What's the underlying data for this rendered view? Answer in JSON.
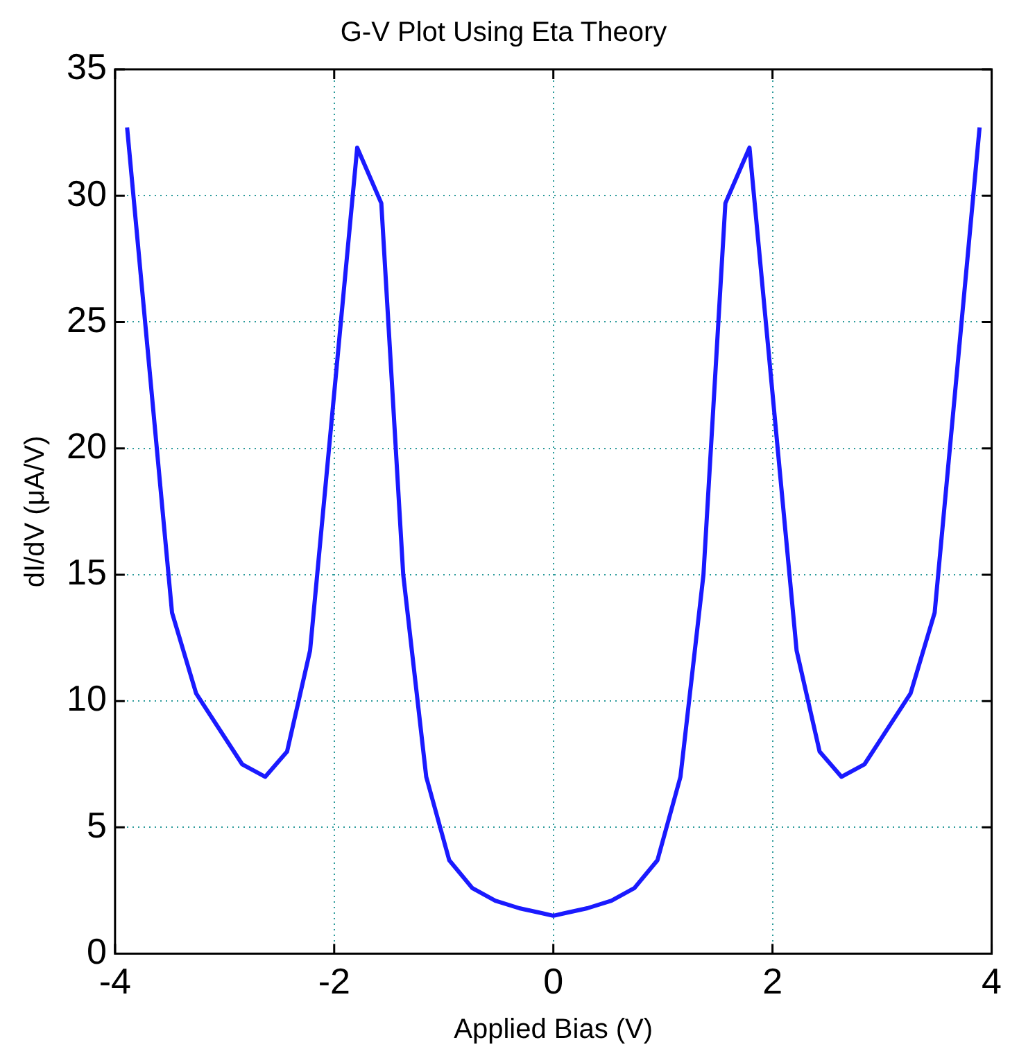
{
  "chart_data": {
    "type": "line",
    "title": "G-V Plot Using Eta Theory",
    "xlabel": "Applied Bias (V)",
    "ylabel": "dI/dV (μA/V)",
    "x": [
      -3.89,
      -3.48,
      -3.26,
      -2.84,
      -2.63,
      -2.43,
      -2.22,
      -1.79,
      -1.57,
      -1.37,
      -1.16,
      -0.95,
      -0.74,
      -0.53,
      -0.31,
      -0.1,
      0,
      0.1,
      0.31,
      0.53,
      0.74,
      0.95,
      1.16,
      1.37,
      1.57,
      1.79,
      2.22,
      2.43,
      2.63,
      2.84,
      3.26,
      3.48,
      3.89
    ],
    "series": [
      {
        "color": "#1a1aff",
        "values": [
          32.7,
          13.5,
          10.3,
          7.5,
          7.0,
          8.0,
          12.0,
          31.9,
          29.7,
          15,
          7.0,
          3.7,
          2.6,
          2.1,
          1.8,
          1.6,
          1.5,
          1.6,
          1.8,
          2.1,
          2.6,
          3.7,
          7.0,
          15,
          29.7,
          31.9,
          12.0,
          8.0,
          7.0,
          7.5,
          10.3,
          13.5,
          32.7
        ]
      }
    ],
    "xlim": [
      -4,
      4
    ],
    "xticks": [
      -4,
      -2,
      0,
      2,
      4
    ],
    "ylim": [
      0,
      35
    ],
    "yticks": [
      0,
      5,
      10,
      15,
      20,
      25,
      30,
      35
    ],
    "grid": true,
    "legend": false,
    "marker": "none",
    "line_style": "solid"
  }
}
